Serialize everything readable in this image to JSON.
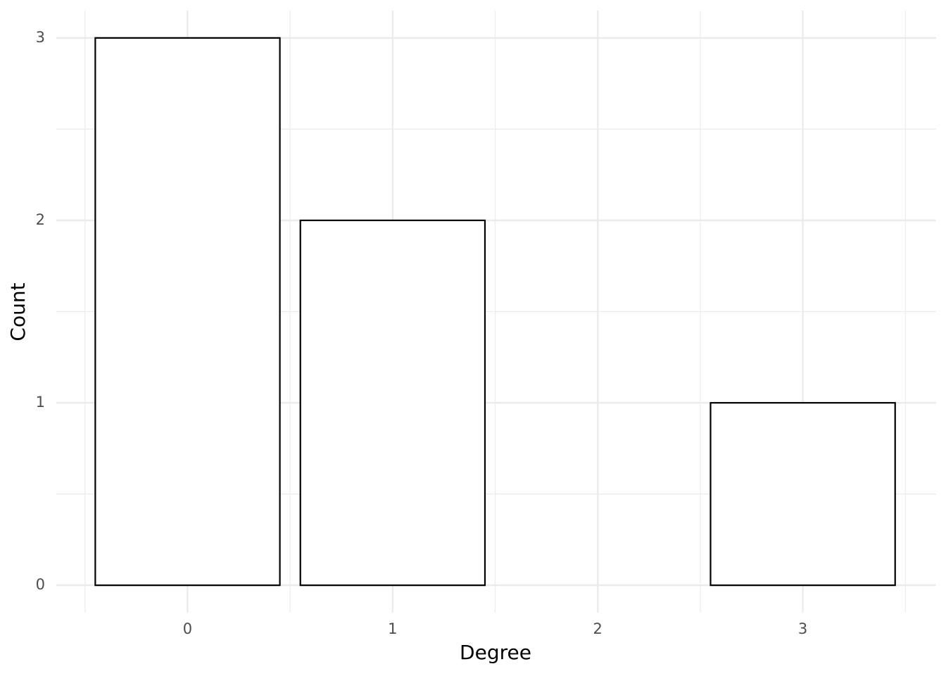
{
  "chart_data": {
    "type": "bar",
    "x_label": "Degree",
    "y_label": "Count",
    "x": [
      0,
      1,
      3
    ],
    "values": [
      3,
      2,
      1
    ],
    "color": "#ffffff",
    "edge_color": "#000000",
    "xlim": [
      -0.64,
      3.65
    ],
    "xticks": [
      0,
      1,
      2,
      3
    ],
    "xminor": [
      -0.5,
      0.5,
      1.5,
      2.5,
      3.5
    ],
    "ylim": [
      -0.15,
      3.15
    ],
    "yticks": [
      0,
      1,
      2,
      3
    ],
    "yminor": [
      0.5,
      1.5,
      2.5
    ],
    "grid": true
  }
}
